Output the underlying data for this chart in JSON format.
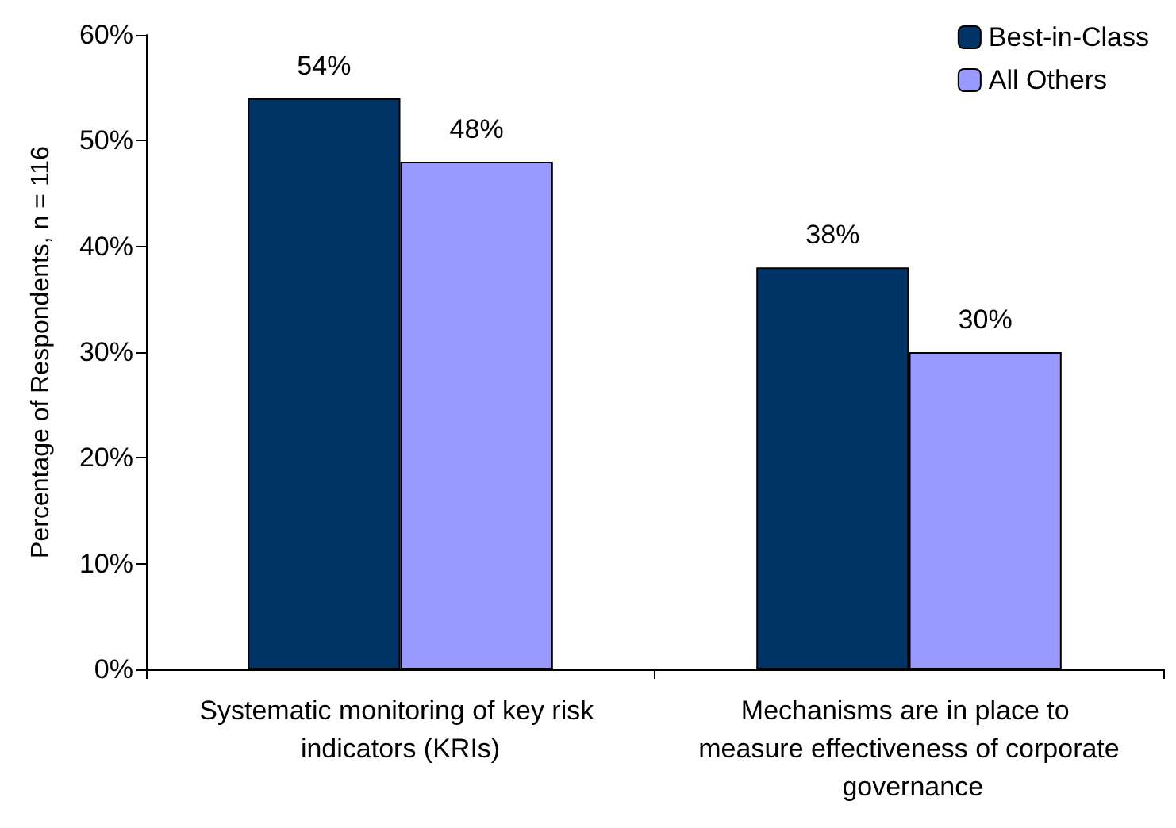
{
  "chart_data": {
    "type": "bar",
    "ylabel": "Percentage of Respondents, n = 116",
    "categories": [
      "Systematic monitoring of key risk indicators (KRIs)",
      "Mechanisms are in place to measure effectiveness of corporate governance"
    ],
    "series": [
      {
        "name": "Best-in-Class",
        "color": "#003366",
        "values": [
          54,
          38
        ],
        "value_labels": [
          "54%",
          "38%"
        ]
      },
      {
        "name": "All Others",
        "color": "#9999ff",
        "values": [
          48,
          30
        ],
        "value_labels": [
          "48%",
          "30%"
        ]
      }
    ],
    "ylim": [
      0,
      60
    ],
    "yticks": [
      {
        "value": 0,
        "label": "0%"
      },
      {
        "value": 10,
        "label": "10%"
      },
      {
        "value": 20,
        "label": "20%"
      },
      {
        "value": 30,
        "label": "30%"
      },
      {
        "value": 40,
        "label": "40%"
      },
      {
        "value": 50,
        "label": "50%"
      },
      {
        "value": 60,
        "label": "60%"
      }
    ],
    "grid": false,
    "legend": "top right"
  }
}
